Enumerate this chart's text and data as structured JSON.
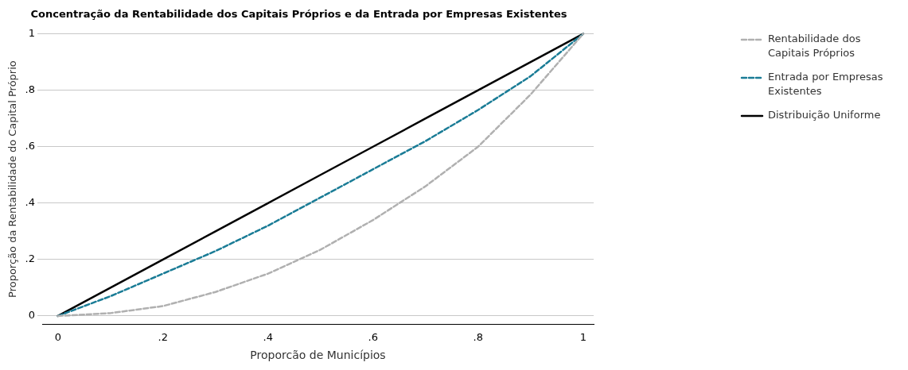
{
  "chart_data": {
    "type": "line",
    "title": "Concentração da Rentabilidade dos Capitais Próprios e da Entrada por Empresas Existentes",
    "xlabel": "Proporcão de Municípios",
    "ylabel": "Proporção da Rentabilidade do Capital Próprio",
    "x": [
      0,
      0.1,
      0.2,
      0.3,
      0.4,
      0.5,
      0.6,
      0.7,
      0.8,
      0.9,
      1
    ],
    "series": [
      {
        "name": "Rentabilidade dos Capitais Próprios",
        "color": "#b0b0b0",
        "line_style": "dashed",
        "values": [
          0,
          0.01,
          0.035,
          0.085,
          0.15,
          0.235,
          0.34,
          0.46,
          0.6,
          0.785,
          1
        ]
      },
      {
        "name": "Entrada por Empresas Existentes",
        "color": "#1a7c96",
        "line_style": "dashed",
        "values": [
          0,
          0.07,
          0.15,
          0.23,
          0.32,
          0.42,
          0.52,
          0.62,
          0.73,
          0.85,
          1
        ]
      },
      {
        "name": "Distribuição Uniforme",
        "color": "#000000",
        "line_style": "solid",
        "values": [
          0,
          0.1,
          0.2,
          0.3,
          0.4,
          0.5,
          0.6,
          0.7,
          0.8,
          0.9,
          1
        ]
      }
    ],
    "xlim": [
      -0.03,
      1.02
    ],
    "ylim": [
      -0.03,
      1
    ],
    "xticks": [
      {
        "value": 0,
        "label": "0"
      },
      {
        "value": 0.2,
        "label": ".2"
      },
      {
        "value": 0.4,
        "label": ".4"
      },
      {
        "value": 0.6,
        "label": ".6"
      },
      {
        "value": 0.8,
        "label": ".8"
      },
      {
        "value": 1,
        "label": "1"
      }
    ],
    "yticks": [
      {
        "value": 0,
        "label": "0"
      },
      {
        "value": 0.2,
        "label": ".2"
      },
      {
        "value": 0.4,
        "label": ".4"
      },
      {
        "value": 0.6,
        "label": ".6"
      },
      {
        "value": 0.8,
        "label": ".8"
      },
      {
        "value": 1,
        "label": "1"
      }
    ],
    "grid": "y",
    "legend": "top right",
    "marker": "none"
  }
}
